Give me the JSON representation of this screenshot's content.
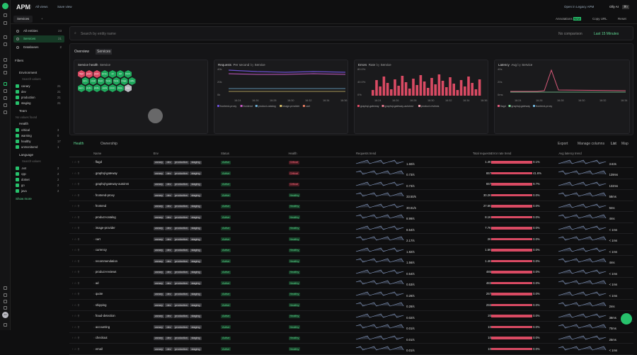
{
  "header": {
    "title": "APM",
    "all_views": "All views",
    "save_view": "Save view",
    "open_legacy": "Open in Legacy APM",
    "olly_ai": "Olly AI",
    "shortcut": "⌘I"
  },
  "tabs": {
    "active": "Services",
    "actions": [
      "Annotations",
      "Copy URL",
      "Reset"
    ],
    "annot_badge": "New"
  },
  "sidebar": {
    "items": [
      {
        "label": "All entities",
        "count": "23"
      },
      {
        "label": "Services",
        "count": "21"
      },
      {
        "label": "Databases",
        "count": "2"
      }
    ],
    "filters_title": "Filters",
    "environment": {
      "title": "Environment",
      "search": "Search values",
      "values": [
        {
          "label": "canary",
          "count": "21"
        },
        {
          "label": "dev",
          "count": "21"
        },
        {
          "label": "production",
          "count": "21"
        },
        {
          "label": "staging",
          "count": "21"
        }
      ]
    },
    "team": {
      "title": "Team",
      "empty": "No values found"
    },
    "health": {
      "title": "Health",
      "values": [
        {
          "label": "critical",
          "count": "3"
        },
        {
          "label": "warning",
          "count": "0"
        },
        {
          "label": "healthy",
          "count": "17"
        },
        {
          "label": "unmonitored",
          "count": "1"
        }
      ]
    },
    "language": {
      "title": "Language",
      "search": "Search values",
      "values": [
        {
          "label": ".net",
          "count": "2"
        },
        {
          "label": "cpp",
          "count": "2"
        },
        {
          "label": "dotnet",
          "count": "2"
        },
        {
          "label": "go",
          "count": "2"
        },
        {
          "label": "java",
          "count": "2"
        }
      ]
    },
    "show_more": "Show more"
  },
  "search": {
    "placeholder": "Search by entity name",
    "no_comparison": "No comparison",
    "timerange": "Last 15 Minutes"
  },
  "overview": {
    "title": "Overview",
    "badge": "Services",
    "health": {
      "title": "Service health",
      "by": "Service",
      "hex": [
        {
          "n": "flagd",
          "s": "c"
        },
        {
          "n": "graph..",
          "s": "c"
        },
        {
          "n": "graph..",
          "s": "c"
        },
        {
          "n": "accou..",
          "s": "h"
        },
        {
          "n": "ad",
          "s": "h"
        },
        {
          "n": "cart",
          "s": "h"
        },
        {
          "n": "check..",
          "s": "h"
        },
        {
          "n": "curre..",
          "s": "h"
        },
        {
          "n": "email",
          "s": "h"
        },
        {
          "n": "fraud..",
          "s": "h"
        },
        {
          "n": "fronte..",
          "s": "h"
        },
        {
          "n": "fronte..",
          "s": "h"
        },
        {
          "n": "image..",
          "s": "h"
        },
        {
          "n": "kafka",
          "s": "h"
        },
        {
          "n": "paym..",
          "s": "h"
        },
        {
          "n": "produ..",
          "s": "h"
        },
        {
          "n": "produ..",
          "s": "h"
        },
        {
          "n": "quote",
          "s": "h"
        },
        {
          "n": "recom..",
          "s": "h"
        },
        {
          "n": "shipp..",
          "s": "h"
        },
        {
          "n": "load..",
          "s": "u"
        }
      ]
    },
    "requests": {
      "title": "Requests",
      "rate": "Per second",
      "by_label": "by",
      "by": "Service",
      "yticks": [
        "40k",
        "20k",
        "0k"
      ],
      "xticks": [
        "16:24",
        "16:26",
        "16:28",
        "16:30",
        "16:32",
        "16:34",
        "16:36"
      ],
      "legend": [
        "frontend-proxy",
        "frontend",
        "product-catalog",
        "image-provider",
        "cart"
      ]
    },
    "errors": {
      "title": "Errors",
      "rate": "Rate",
      "by_label": "by",
      "by": "Service",
      "yticks": [
        "80.0%",
        "40.0%",
        "0%"
      ],
      "xticks": [
        "16:24",
        "16:26",
        "16:28",
        "16:30",
        "16:32",
        "16:34",
        "16:36"
      ],
      "legend": [
        "graphql-gateway",
        "graphql-gateway-autoinst",
        "product-reviews"
      ]
    },
    "latency": {
      "title": "Latency",
      "agg": "Avg",
      "by_label": "by",
      "by": "Service",
      "yticks": [
        "40s",
        "20s",
        "0ms"
      ],
      "xticks": [
        "16:24",
        "16:26",
        "16:28",
        "16:30",
        "16:32",
        "16:34"
      ],
      "legend": [
        "flagd",
        "graphql-gateway",
        "frontend-proxy"
      ]
    }
  },
  "grouping": {
    "tabs": [
      "Health",
      "Ownership"
    ],
    "export": "Export",
    "manage": "Manage columns",
    "list": "List",
    "map": "Map"
  },
  "table": {
    "columns": {
      "name": "Name",
      "env": "Env",
      "status": "Status",
      "health": "Health",
      "req_trend": "Requests trend",
      "total": "Total requests",
      "err_trend": "Error rate trend",
      "lat_trend": "Avg latency trend"
    },
    "envs": [
      "canary",
      "dev",
      "production",
      "staging"
    ],
    "rows": [
      {
        "name": "flagd",
        "status": "Active",
        "health": "Critical",
        "rps": "1.60/s",
        "total": "1.4K",
        "err": "0.1%",
        "lat": "3.63s"
      },
      {
        "name": "graphql-gateway",
        "status": "Active",
        "health": "Critical",
        "rps": "0.73/s",
        "total": "657",
        "err": "41.6%",
        "lat": "139ms"
      },
      {
        "name": "graphql-gateway-autoinst",
        "status": "Active",
        "health": "Critical",
        "rps": "0.73/s",
        "total": "657",
        "err": "9.7%",
        "lat": "132ms"
      },
      {
        "name": "frontend-proxy",
        "status": "Active",
        "health": "Healthy",
        "rps": "33.50/s",
        "total": "30.2K",
        "err": "0.0%",
        "lat": "58ms"
      },
      {
        "name": "frontend",
        "status": "Active",
        "health": "Healthy",
        "rps": "30.61/s",
        "total": "27.6K",
        "err": "0.0%",
        "lat": "5ms"
      },
      {
        "name": "product-catalog",
        "status": "Active",
        "health": "Healthy",
        "rps": "8.99/s",
        "total": "8.1K",
        "err": "0.0%",
        "lat": "4ms"
      },
      {
        "name": "image-provider",
        "status": "Active",
        "health": "Healthy",
        "rps": "8.54/s",
        "total": "7.7K",
        "err": "0.0%",
        "lat": "< 1ms"
      },
      {
        "name": "cart",
        "status": "Active",
        "health": "Healthy",
        "rps": "2.17/s",
        "total": "2K",
        "err": "0.0%",
        "lat": "< 1ms"
      },
      {
        "name": "currency",
        "status": "Active",
        "health": "Healthy",
        "rps": "1.82/s",
        "total": "1.6K",
        "err": "0.0%",
        "lat": "< 1ms"
      },
      {
        "name": "recommendation",
        "status": "Active",
        "health": "Healthy",
        "rps": "1.56/s",
        "total": "1.4K",
        "err": "0.0%",
        "lat": "4ms"
      },
      {
        "name": "product-reviews",
        "status": "Active",
        "health": "Healthy",
        "rps": "0.54/s",
        "total": "485",
        "err": "0.0%",
        "lat": "< 1ms"
      },
      {
        "name": "ad",
        "status": "Active",
        "health": "Healthy",
        "rps": "0.53/s",
        "total": "483",
        "err": "0.0%",
        "lat": "< 1ms"
      },
      {
        "name": "quote",
        "status": "Active",
        "health": "Healthy",
        "rps": "0.28/s",
        "total": "257",
        "err": "0.0%",
        "lat": "< 1ms"
      },
      {
        "name": "shipping",
        "status": "Active",
        "health": "Healthy",
        "rps": "0.28/s",
        "total": "255",
        "err": "0.0%",
        "lat": "2ms"
      },
      {
        "name": "fraud-detection",
        "status": "Active",
        "health": "Healthy",
        "rps": "0.02/s",
        "total": "20",
        "err": "0.0%",
        "lat": "38ms"
      },
      {
        "name": "accounting",
        "status": "Active",
        "health": "Healthy",
        "rps": "0.01/s",
        "total": "10",
        "err": "0.0%",
        "lat": "70ms"
      },
      {
        "name": "checkout",
        "status": "Active",
        "health": "Healthy",
        "rps": "0.01/s",
        "total": "10",
        "err": "0.0%",
        "lat": "25ms"
      },
      {
        "name": "email",
        "status": "Active",
        "health": "Healthy",
        "rps": "0.01/s",
        "total": "10",
        "err": "0.0%",
        "lat": "< 1ms"
      }
    ]
  }
}
